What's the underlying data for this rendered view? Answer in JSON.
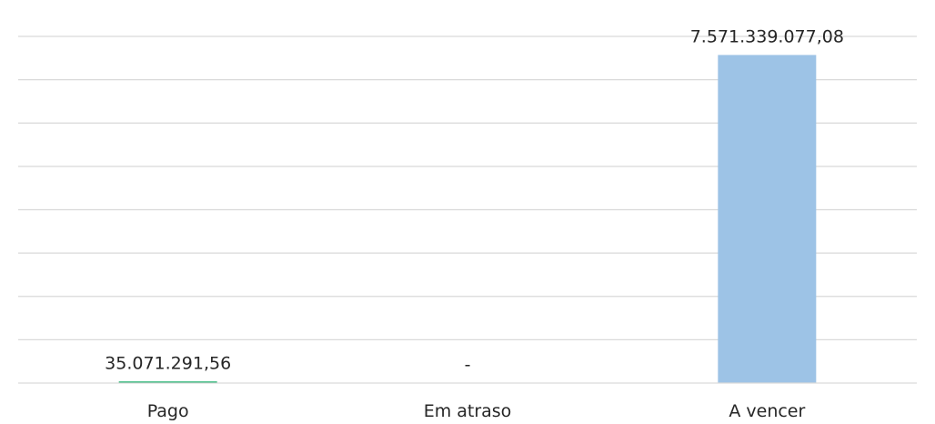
{
  "chart_data": {
    "type": "bar",
    "categories": [
      "Pago",
      "Em atraso",
      "A vencer"
    ],
    "values": [
      35071291.56,
      0,
      7571339077.08
    ],
    "data_labels": [
      "35.071.291,56",
      "-",
      "7.571.339.077,08"
    ],
    "colors": [
      "#00a65a",
      "#00a65a",
      "#9dc3e6"
    ],
    "ylim": [
      0,
      8000000000
    ],
    "grid": true,
    "title": "",
    "xlabel": "",
    "ylabel": ""
  }
}
